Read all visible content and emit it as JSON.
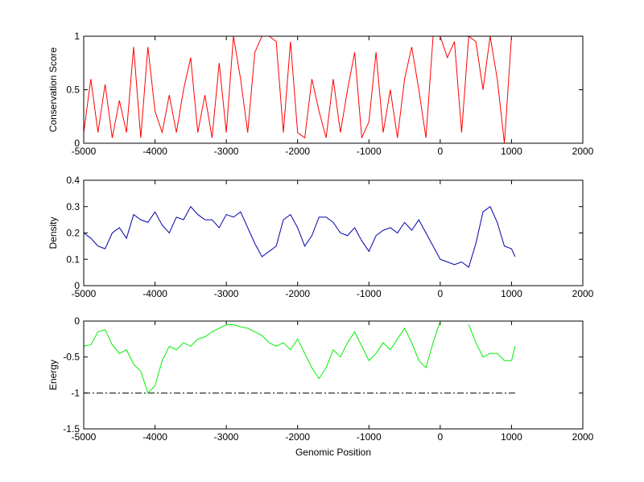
{
  "chart_data": [
    {
      "type": "line",
      "ylabel": "Conservation Score",
      "x": [
        -5000,
        -4900,
        -4800,
        -4700,
        -4600,
        -4500,
        -4400,
        -4300,
        -4200,
        -4100,
        -4000,
        -3900,
        -3800,
        -3700,
        -3600,
        -3500,
        -3400,
        -3300,
        -3200,
        -3100,
        -3000,
        -2900,
        -2800,
        -2700,
        -2600,
        -2500,
        -2400,
        -2300,
        -2200,
        -2100,
        -2000,
        -1900,
        -1800,
        -1700,
        -1600,
        -1500,
        -1400,
        -1300,
        -1200,
        -1100,
        -1000,
        -900,
        -800,
        -700,
        -600,
        -500,
        -400,
        -300,
        -200,
        -100,
        0,
        100,
        200,
        300,
        400,
        500,
        600,
        700,
        800,
        900,
        1000,
        1050
      ],
      "series": [
        {
          "color": "#ff0000",
          "values": [
            0.1,
            0.6,
            0.1,
            0.55,
            0.05,
            0.4,
            0.1,
            0.9,
            0.05,
            0.9,
            0.3,
            0.1,
            0.45,
            0.1,
            0.5,
            0.8,
            0.1,
            0.45,
            0.05,
            0.75,
            0.1,
            1,
            0.6,
            0.1,
            0.85,
            1,
            1,
            0.95,
            0.1,
            0.95,
            0.1,
            0.05,
            0.6,
            0.3,
            0.05,
            0.6,
            0.1,
            0.5,
            0.85,
            0.05,
            0.2,
            0.85,
            0.1,
            0.5,
            0.05,
            0.6,
            0.9,
            0.5,
            0.05,
            1,
            1,
            0.8,
            0.95,
            0.1,
            1,
            0.95,
            0.5,
            1,
            0.6,
            0,
            1,
            1
          ]
        }
      ],
      "xlim": [
        -5000,
        2000
      ],
      "xticks": [
        -5000,
        -4000,
        -3000,
        -2000,
        -1000,
        0,
        1000,
        2000
      ],
      "ylim": [
        0,
        1
      ],
      "yticks": [
        0,
        0.5,
        1
      ]
    },
    {
      "type": "line",
      "ylabel": "Density",
      "x": [
        -5000,
        -4900,
        -4800,
        -4700,
        -4600,
        -4500,
        -4400,
        -4300,
        -4200,
        -4100,
        -4000,
        -3900,
        -3800,
        -3700,
        -3600,
        -3500,
        -3400,
        -3300,
        -3200,
        -3100,
        -3000,
        -2900,
        -2800,
        -2700,
        -2600,
        -2500,
        -2400,
        -2300,
        -2200,
        -2100,
        -2000,
        -1900,
        -1800,
        -1700,
        -1600,
        -1500,
        -1400,
        -1300,
        -1200,
        -1100,
        -1000,
        -900,
        -800,
        -700,
        -600,
        -500,
        -400,
        -300,
        -200,
        -100,
        0,
        100,
        200,
        300,
        400,
        500,
        600,
        700,
        800,
        900,
        1000,
        1050
      ],
      "series": [
        {
          "color": "#0000aa",
          "values": [
            0.2,
            0.18,
            0.15,
            0.14,
            0.2,
            0.22,
            0.18,
            0.27,
            0.25,
            0.24,
            0.28,
            0.23,
            0.2,
            0.26,
            0.25,
            0.3,
            0.27,
            0.25,
            0.25,
            0.22,
            0.27,
            0.26,
            0.28,
            0.22,
            0.16,
            0.11,
            0.13,
            0.15,
            0.25,
            0.27,
            0.22,
            0.15,
            0.19,
            0.26,
            0.26,
            0.24,
            0.2,
            0.19,
            0.22,
            0.17,
            0.13,
            0.19,
            0.21,
            0.22,
            0.2,
            0.24,
            0.21,
            0.25,
            0.2,
            0.15,
            0.1,
            0.09,
            0.08,
            0.09,
            0.07,
            0.16,
            0.28,
            0.3,
            0.24,
            0.15,
            0.14,
            0.11
          ]
        }
      ],
      "xlim": [
        -5000,
        2000
      ],
      "xticks": [
        -5000,
        -4000,
        -3000,
        -2000,
        -1000,
        0,
        1000,
        2000
      ],
      "ylim": [
        0,
        0.4
      ],
      "yticks": [
        0,
        0.1,
        0.2,
        0.3,
        0.4
      ]
    },
    {
      "type": "line",
      "ylabel": "Energy",
      "xlabel": "Genomic Position",
      "x": [
        -5000,
        -4900,
        -4800,
        -4700,
        -4600,
        -4500,
        -4400,
        -4300,
        -4200,
        -4100,
        -4000,
        -3900,
        -3800,
        -3700,
        -3600,
        -3500,
        -3400,
        -3300,
        -3200,
        -3100,
        -3000,
        -2900,
        -2800,
        -2700,
        -2600,
        -2500,
        -2400,
        -2300,
        -2200,
        -2100,
        -2000,
        -1900,
        -1800,
        -1700,
        -1600,
        -1500,
        -1400,
        -1300,
        -1200,
        -1100,
        -1000,
        -900,
        -800,
        -700,
        -600,
        -500,
        -400,
        -300,
        -200,
        -100,
        0,
        100,
        200,
        300,
        400,
        500,
        600,
        700,
        800,
        900,
        1000,
        1050
      ],
      "series": [
        {
          "color": "#00ee00",
          "values": [
            -0.35,
            -0.33,
            -0.15,
            -0.12,
            -0.33,
            -0.45,
            -0.4,
            -0.6,
            -0.7,
            -1.0,
            -0.9,
            -0.55,
            -0.35,
            -0.4,
            -0.3,
            -0.35,
            -0.25,
            -0.22,
            -0.15,
            -0.1,
            -0.05,
            -0.05,
            -0.08,
            -0.1,
            -0.15,
            -0.2,
            -0.3,
            -0.35,
            -0.3,
            -0.4,
            -0.25,
            -0.45,
            -0.65,
            -0.8,
            -0.65,
            -0.4,
            -0.5,
            -0.3,
            -0.15,
            -0.35,
            -0.55,
            -0.45,
            -0.3,
            -0.4,
            -0.25,
            -0.1,
            -0.3,
            -0.55,
            -0.65,
            -0.3,
            0,
            null,
            null,
            null,
            -0.05,
            -0.3,
            -0.5,
            -0.45,
            -0.45,
            -0.55,
            -0.55,
            -0.35
          ]
        }
      ],
      "hline": {
        "y": -1,
        "x": [
          -5000,
          1050
        ],
        "color": "#000000"
      },
      "xlim": [
        -5000,
        2000
      ],
      "xticks": [
        -5000,
        -4000,
        -3000,
        -2000,
        -1000,
        0,
        1000,
        2000
      ],
      "ylim": [
        -1.5,
        0
      ],
      "yticks": [
        -1.5,
        -1,
        -0.5,
        0
      ]
    }
  ]
}
